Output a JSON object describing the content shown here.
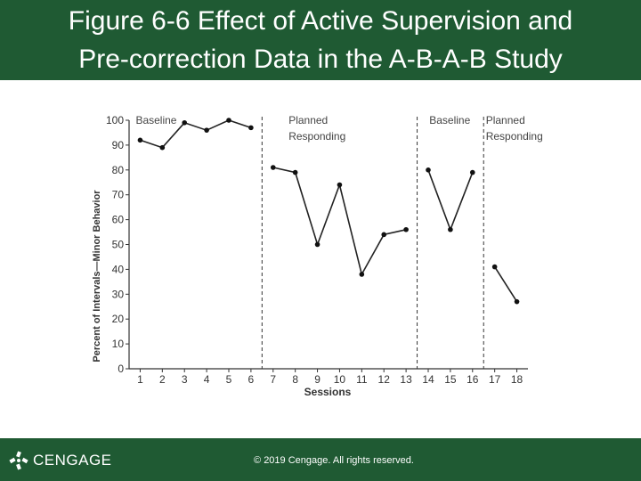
{
  "header": {
    "title_line1": "Figure 6-6 Effect of Active Supervision and",
    "title_line2": "Pre-correction Data in the A-B-A-B Study"
  },
  "footer": {
    "brand": "CENGAGE",
    "copyright": "© 2019 Cengage. All rights reserved."
  },
  "colors": {
    "header_bg": "#1f5a33",
    "axis": "#333333",
    "phase_label": "#444444"
  },
  "chart_data": {
    "type": "line",
    "title": "",
    "xlabel": "Sessions",
    "ylabel": "Percent of Intervals—Minor Behavior",
    "xlim": [
      0.5,
      18.5
    ],
    "ylim": [
      0,
      100
    ],
    "x_ticks": [
      1,
      2,
      3,
      4,
      5,
      6,
      7,
      8,
      9,
      10,
      11,
      12,
      13,
      14,
      15,
      16,
      17,
      18
    ],
    "y_ticks": [
      0,
      10,
      20,
      30,
      40,
      50,
      60,
      70,
      80,
      90,
      100
    ],
    "grid": false,
    "phase_lines_after_session": [
      6.5,
      13.5,
      16.5
    ],
    "phases": [
      {
        "line1": "Baseline",
        "line2": "",
        "anchor_x": 0.8
      },
      {
        "line1": "Planned",
        "line2": "Responding",
        "anchor_x": 7.7
      },
      {
        "line1": "Baseline",
        "line2": "",
        "anchor_x": 14.05
      },
      {
        "line1": "Planned",
        "line2": "Responding",
        "anchor_x": 16.6
      }
    ],
    "series": [
      {
        "name": "Baseline 1",
        "x": [
          1,
          2,
          3,
          4,
          5,
          6
        ],
        "y": [
          92,
          89,
          99,
          96,
          100,
          97
        ]
      },
      {
        "name": "Planned Responding 1",
        "x": [
          7,
          8,
          9,
          10,
          11,
          12,
          13
        ],
        "y": [
          81,
          79,
          50,
          74,
          38,
          54,
          56
        ]
      },
      {
        "name": "Baseline 2",
        "x": [
          14,
          15,
          16
        ],
        "y": [
          80,
          56,
          79
        ]
      },
      {
        "name": "Planned Responding 2",
        "x": [
          17,
          18
        ],
        "y": [
          41,
          27
        ]
      }
    ]
  }
}
